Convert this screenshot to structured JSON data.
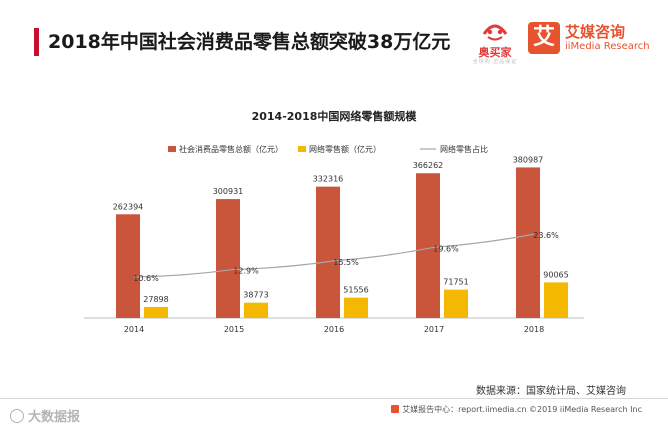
{
  "header": {
    "title": "2018年中国社会消费品零售总额突破38万亿元",
    "logo_fenmaijia_text": "奥买家",
    "logo_fenmaijia_sub": "全球购 正品保证",
    "logo_iimedia_glyph": "艾",
    "logo_iimedia_name": "艾媒咨询",
    "logo_iimedia_en": "iiMedia Research"
  },
  "chart_data": {
    "type": "bar",
    "title": "2014-2018中国网络零售额规模",
    "categories": [
      "2014",
      "2015",
      "2016",
      "2017",
      "2018"
    ],
    "series": [
      {
        "name": "社会消费品零售总额（亿元）",
        "type": "bar",
        "color": "#c9553a",
        "values": [
          262394,
          300931,
          332316,
          366262,
          380987
        ]
      },
      {
        "name": "网络零售额（亿元）",
        "type": "bar",
        "color": "#f5b800",
        "values": [
          27898,
          38773,
          51556,
          71751,
          90065
        ]
      },
      {
        "name": "网络零售占比",
        "type": "line",
        "color": "#a6a6a6",
        "values": [
          10.6,
          12.9,
          15.5,
          19.6,
          23.6
        ],
        "labels": [
          "10.6%",
          "12.9%",
          "15.5%",
          "19.6%",
          "23.6%"
        ]
      }
    ],
    "ylim": [
      0,
      420000
    ],
    "y2lim": [
      0,
      40
    ],
    "legend": "top-center"
  },
  "source": "数据来源：国家统计局、艾媒咨询",
  "footer": {
    "watermark": "大数据报",
    "report_site": "艾媒报告中心：report.iimedia.cn ©2019  iiMedia Research  Inc"
  }
}
